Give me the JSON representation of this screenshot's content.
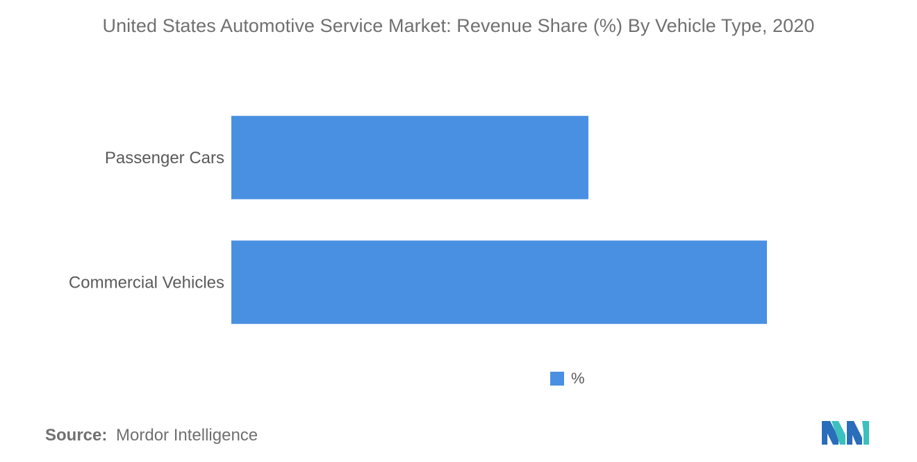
{
  "title": "United States Automotive Service Market: Revenue Share (%) By Vehicle Type, 2020",
  "legend": {
    "label": "%"
  },
  "source": {
    "label": "Source:",
    "value": "Mordor Intelligence"
  },
  "logo_icon": "mordor-intelligence-logo-icon",
  "colors": {
    "bar": "#4a90e2",
    "logo_teal": "#3cbfbf",
    "logo_blue": "#2a6dba"
  },
  "chart_data": {
    "type": "bar",
    "orientation": "horizontal",
    "categories": [
      "Passenger Cars",
      "Commercial Vehicles"
    ],
    "series": [
      {
        "name": "%",
        "values": [
          40,
          60
        ]
      }
    ],
    "xlim": [
      0,
      60
    ],
    "grid": false,
    "legend_position": "bottom"
  }
}
